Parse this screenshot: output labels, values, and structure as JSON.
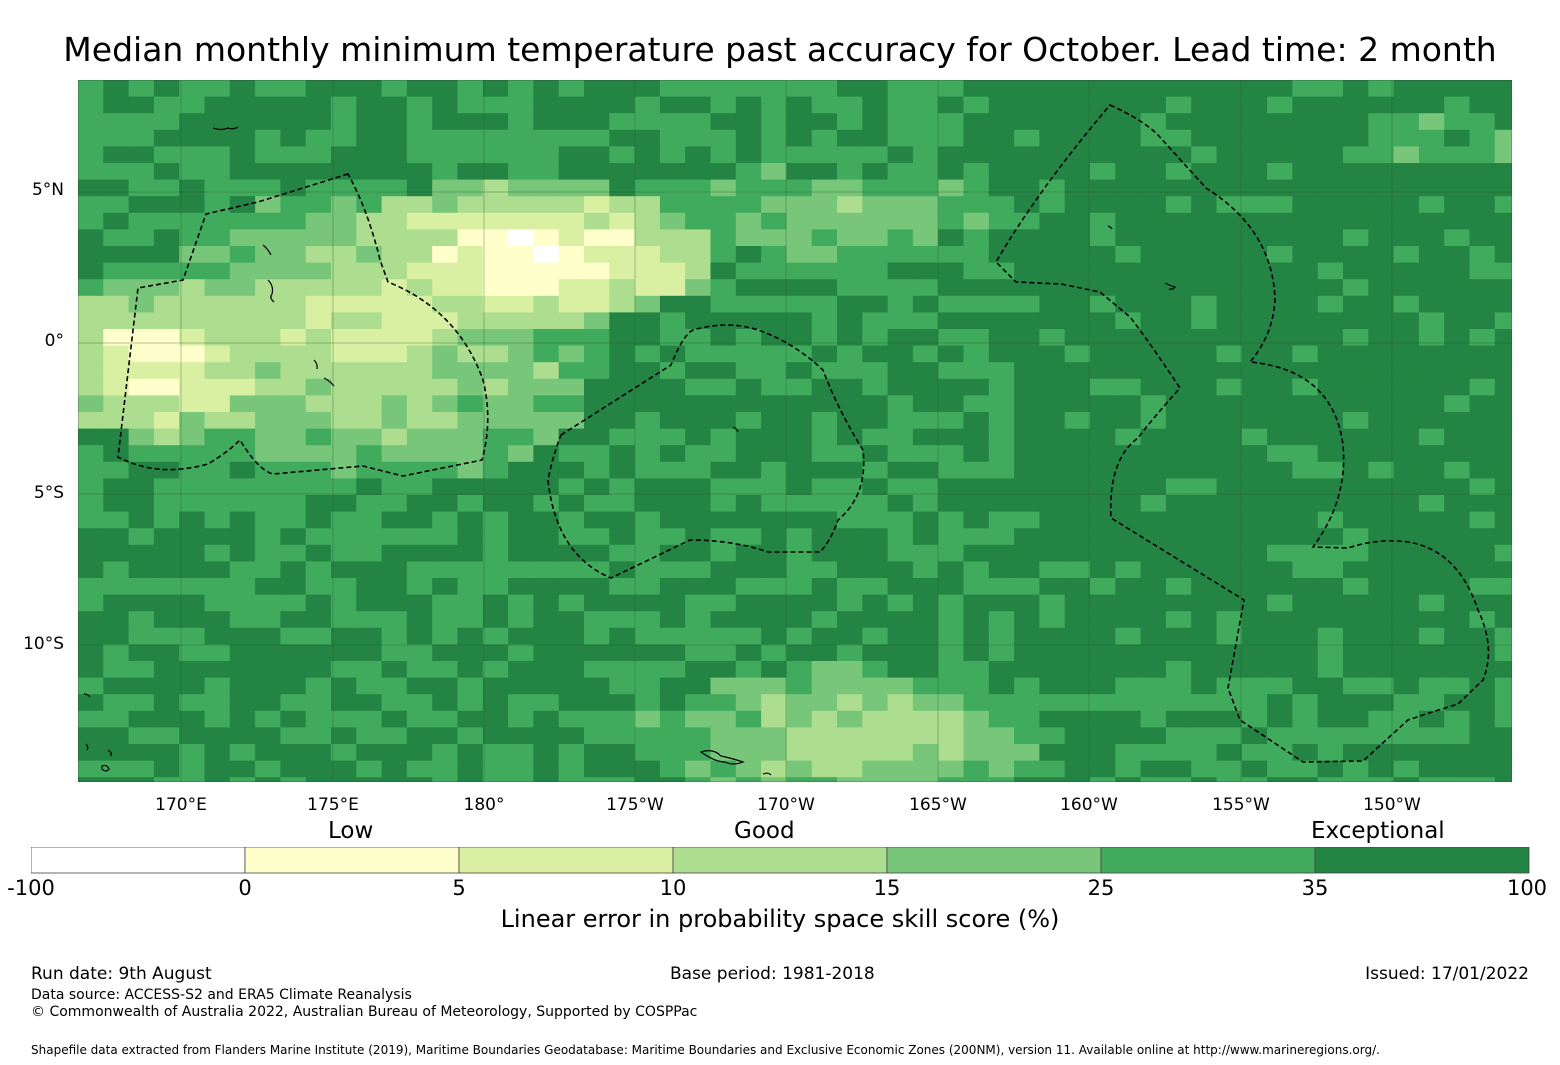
{
  "title": "Median monthly minimum temperature past accuracy for October. Lead time: 2 month",
  "map": {
    "lat_labels": [
      "5°N",
      "0°",
      "5°S",
      "10°S"
    ],
    "lon_labels": [
      "170°E",
      "175°E",
      "180°",
      "175°W",
      "170°W",
      "165°W",
      "160°W",
      "155°W",
      "150°W"
    ],
    "colors": {
      "below_0": "#ffffff",
      "0_5": "#ffffcc",
      "5_10": "#d9f0a3",
      "10_15": "#addd8e",
      "15_25": "#78c679",
      "25_35": "#41ab5d",
      "35_100": "#238443",
      "boundary": "#000000"
    }
  },
  "legend": {
    "categories": [
      "Low",
      "Good",
      "Exceptional"
    ],
    "ticks": [
      "-100",
      "0",
      "5",
      "10",
      "15",
      "25",
      "35",
      "100"
    ],
    "title": "Linear error in probability space skill score (%)"
  },
  "footer": {
    "run_date": "Run date: 9th August",
    "base_period": "Base period: 1981-2018",
    "issued": "Issued: 17/01/2022",
    "data_source": "Data source: ACCESS-S2 and ERA5 Climate Reanalysis",
    "copyright": "© Commonwealth of Australia 2022, Australian Bureau of Meteorology, Supported by COSPPac",
    "shapefile": "Shapefile data extracted from Flanders Marine Institute (2019), Maritime Boundaries Geodatabase: Maritime Boundaries and Exclusive Economic Zones (200NM), version 11. Available online at http://www.marineregions.org/."
  }
}
